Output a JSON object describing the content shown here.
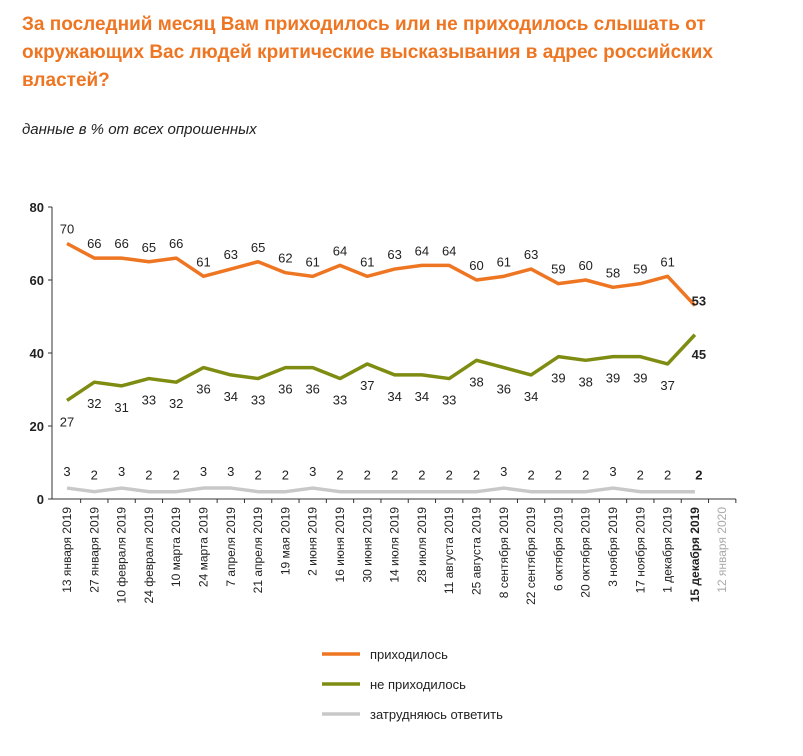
{
  "chart_data": {
    "type": "line",
    "title": "За последний месяц Вам приходилось или не приходилось слышать от окружающих Вас людей критические высказывания в адрес российских властей?",
    "subtitle": "данные в % от всех опрошенных",
    "categories": [
      "13 января 2019",
      "27 января 2019",
      "10 февраля 2019",
      "24 февраля 2019",
      "10 марта 2019",
      "24 марта 2019",
      "7 апреля 2019",
      "21 апреля 2019",
      "19 мая 2019",
      "2 июня 2019",
      "16 июня 2019",
      "30 июня 2019",
      "14 июля 2019",
      "28 июля 2019",
      "11 августа 2019",
      "25 августа 2019",
      "8 сентября 2019",
      "22 сентября 2019",
      "6 октября 2019",
      "20 октября 2019",
      "3 ноября 2019",
      "17 ноября 2019",
      "1 декабря 2019",
      "15 декабря 2019",
      "12 января 2020"
    ],
    "series": [
      {
        "name": "приходилось",
        "color": "#ee7623",
        "values": [
          70,
          66,
          66,
          65,
          66,
          61,
          63,
          65,
          62,
          61,
          64,
          61,
          63,
          64,
          64,
          60,
          61,
          63,
          59,
          60,
          58,
          59,
          61,
          53,
          null
        ]
      },
      {
        "name": "не приходилось",
        "color": "#7f8c12",
        "values": [
          27,
          32,
          31,
          33,
          32,
          36,
          34,
          33,
          36,
          36,
          33,
          37,
          34,
          34,
          33,
          38,
          36,
          34,
          39,
          38,
          39,
          39,
          37,
          45,
          null
        ]
      },
      {
        "name": "затрудняюсь ответить",
        "color": "#c8c8c8",
        "values": [
          3,
          2,
          3,
          2,
          2,
          3,
          3,
          2,
          2,
          3,
          2,
          2,
          2,
          2,
          2,
          2,
          3,
          2,
          2,
          2,
          3,
          2,
          2,
          2,
          null
        ]
      }
    ],
    "ylim": [
      0,
      80
    ],
    "yticks": [
      0,
      20,
      40,
      60,
      80
    ]
  }
}
